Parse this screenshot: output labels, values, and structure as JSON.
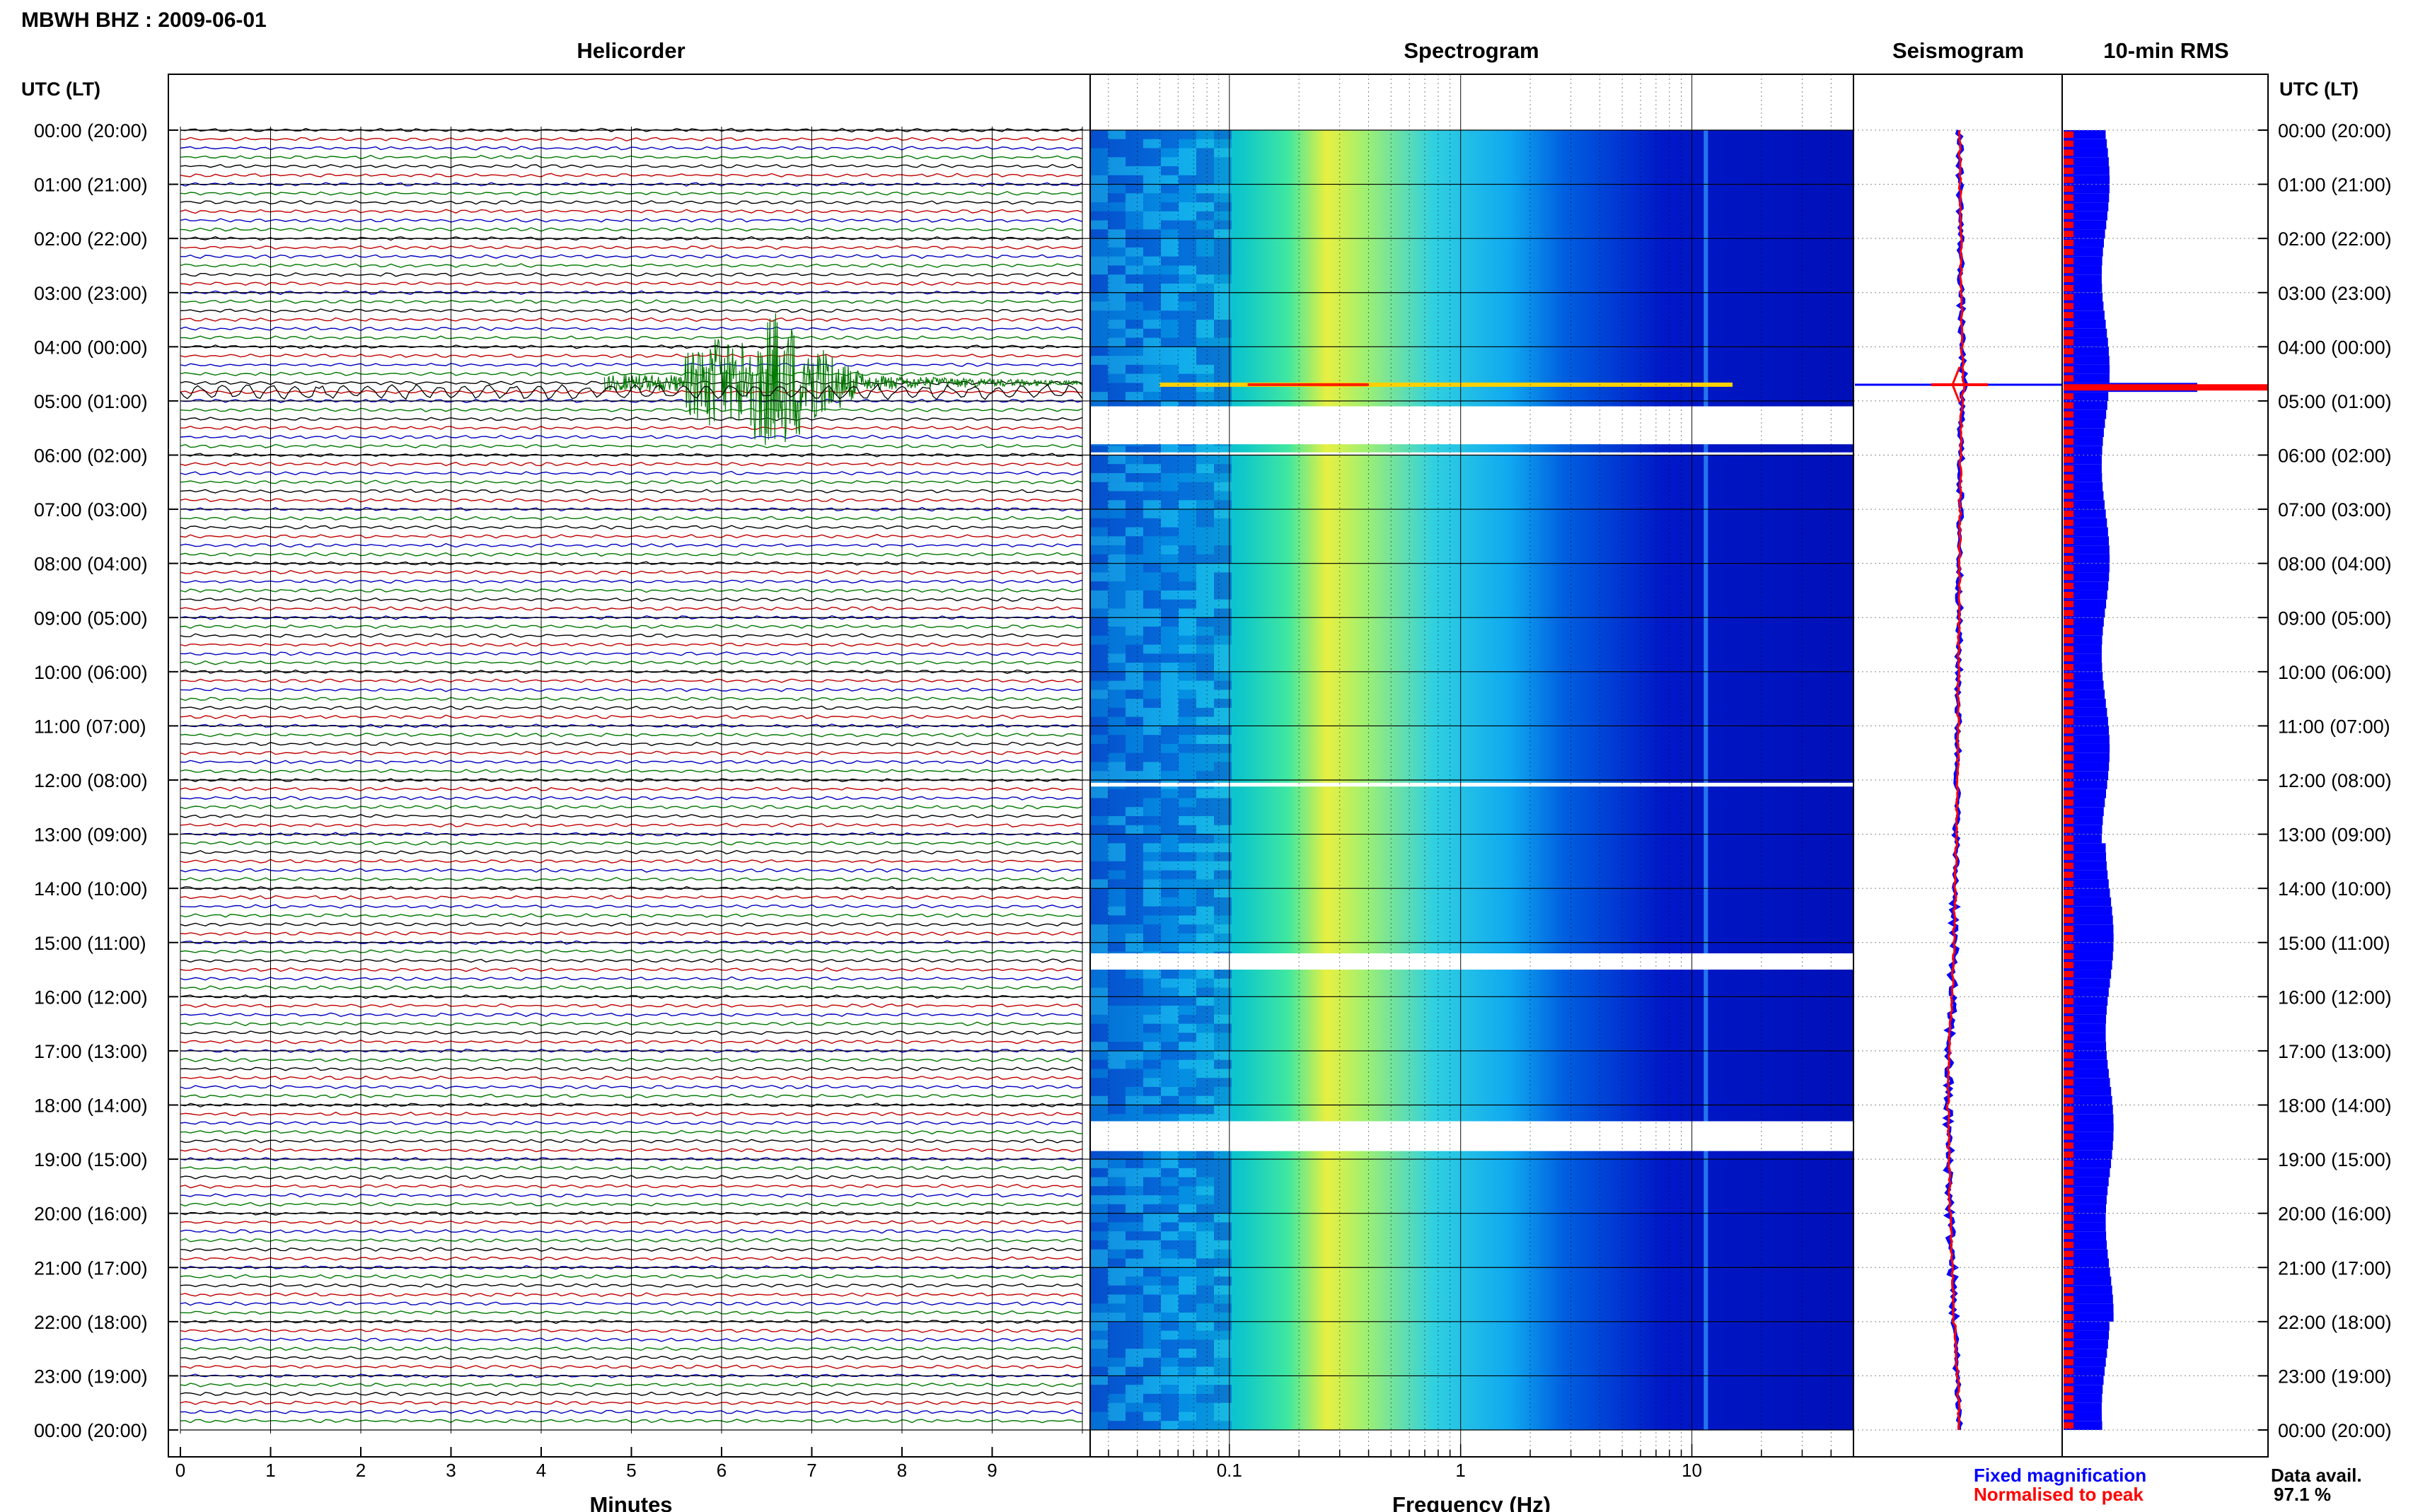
{
  "header": {
    "station_title": "MBWH BHZ : 2009-06-01"
  },
  "panels": {
    "helicorder": "Helicorder",
    "spectrogram": "Spectrogram",
    "seismogram": "Seismogram",
    "rms": "10-min RMS"
  },
  "axes": {
    "time_axis_label": "UTC (LT)",
    "time_labels": [
      "00:00 (20:00)",
      "01:00 (21:00)",
      "02:00 (22:00)",
      "03:00 (23:00)",
      "04:00 (00:00)",
      "05:00 (01:00)",
      "06:00 (02:00)",
      "07:00 (03:00)",
      "08:00 (04:00)",
      "09:00 (05:00)",
      "10:00 (06:00)",
      "11:00 (07:00)",
      "12:00 (08:00)",
      "13:00 (09:00)",
      "14:00 (10:00)",
      "15:00 (11:00)",
      "16:00 (12:00)",
      "17:00 (13:00)",
      "18:00 (14:00)",
      "19:00 (15:00)",
      "20:00 (16:00)",
      "21:00 (17:00)",
      "22:00 (18:00)",
      "23:00 (19:00)",
      "00:00 (20:00)"
    ],
    "minutes_label": "Minutes",
    "minutes_ticks": [
      "0",
      "1",
      "2",
      "3",
      "4",
      "5",
      "6",
      "7",
      "8",
      "9"
    ],
    "frequency_label": "Frequency (Hz)",
    "frequency_ticks": [
      "0.1",
      "1",
      "10"
    ]
  },
  "legend": {
    "fixed": "Fixed magnification",
    "normalised": "Normalised to peak"
  },
  "availability": {
    "label": "Data avail.",
    "value": "97.1 %"
  },
  "colors": {
    "trace_black": "#000000",
    "trace_red": "#c00000",
    "trace_blue": "#0000c0",
    "trace_green": "#007800",
    "fixed_blue": "#0000ff",
    "normalised_red": "#ff0000",
    "spec_low": "#00008b",
    "spec_mid": "#00bfff",
    "spec_high": "#ffff00"
  },
  "chart_data": [
    {
      "type": "line",
      "title": "Helicorder",
      "xlabel": "Minutes",
      "ylabel": "UTC (LT)",
      "xlim": [
        0,
        10
      ],
      "lines_per_hour": 6,
      "events": [
        {
          "time_utc": "04:40",
          "start_minute": 4.7,
          "peak_minute": 6.6,
          "end_minute": 10,
          "description_color": "green"
        }
      ],
      "gaps_utc": [
        "05:00-06:00 (partial)",
        "12:00 (partial)",
        "15:00 (partial)",
        "18:10 (partial)"
      ]
    },
    {
      "type": "heatmap",
      "title": "Spectrogram",
      "xlabel": "Frequency (Hz)",
      "xscale": "log",
      "xlim": [
        0.025,
        50
      ],
      "ylim_hours": [
        0,
        24
      ],
      "peak_band_hz": [
        0.2,
        0.35
      ],
      "line_hz": 11.5,
      "event_hour": 4.7,
      "gap_hours": [
        [
          5.1,
          5.8
        ],
        [
          5.95,
          6.0
        ],
        [
          12.05,
          12.12
        ],
        [
          15.2,
          15.5
        ],
        [
          18.3,
          18.85
        ]
      ]
    },
    {
      "type": "line",
      "title": "Seismogram",
      "series": [
        {
          "name": "Fixed magnification",
          "hours": [
            0,
            2,
            4,
            4.7,
            5,
            6,
            8,
            10,
            12,
            14,
            16,
            17,
            18,
            19,
            20,
            21,
            22,
            23,
            24
          ],
          "offset": [
            0,
            0.05,
            0.1,
            0.2,
            0.1,
            0.05,
            0,
            -0.05,
            -0.1,
            -0.2,
            -0.35,
            -0.5,
            -0.55,
            -0.5,
            -0.45,
            -0.35,
            -0.25,
            -0.1,
            0
          ]
        },
        {
          "name": "Normalised to peak",
          "hours": [
            0,
            2,
            4,
            4.7,
            5,
            6,
            8,
            10,
            12,
            14,
            16,
            17,
            18,
            19,
            20,
            21,
            22,
            23,
            24
          ],
          "offset": [
            0,
            0.05,
            0.1,
            0.2,
            0.1,
            0.05,
            0,
            -0.05,
            -0.1,
            -0.2,
            -0.35,
            -0.5,
            -0.55,
            -0.5,
            -0.45,
            -0.35,
            -0.25,
            -0.1,
            0
          ]
        }
      ]
    },
    {
      "type": "bar",
      "title": "10-min RMS",
      "series": [
        {
          "name": "Fixed magnification",
          "typical": 1.0,
          "event_peak": 4.1,
          "event_hour": 4.67
        },
        {
          "name": "Normalised to peak",
          "typical": 0.2,
          "event_peak": 4.1,
          "event_hour": 4.67
        }
      ]
    }
  ]
}
